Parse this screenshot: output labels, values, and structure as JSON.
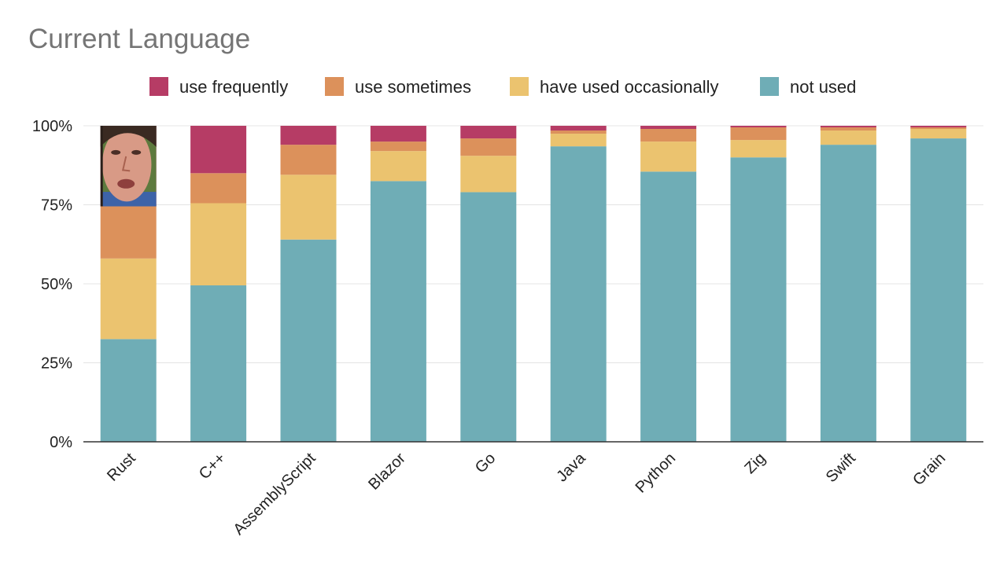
{
  "chart_data": {
    "type": "bar",
    "stacked": true,
    "percent_stacked": true,
    "title": "Current Language",
    "xlabel": "",
    "ylabel": "",
    "ylim": [
      0,
      100
    ],
    "yticks": [
      "0%",
      "25%",
      "50%",
      "75%",
      "100%"
    ],
    "grid": true,
    "legend_position": "top",
    "categories": [
      "Rust",
      "C++",
      "AssemblyScript",
      "Blazor",
      "Go",
      "Java",
      "Python",
      "Zig",
      "Swift",
      "Grain"
    ],
    "series": [
      {
        "name": "not used",
        "color": "#6fadb6",
        "values": [
          32.5,
          49.5,
          64,
          82.5,
          79,
          93.5,
          85.5,
          90,
          94,
          96
        ]
      },
      {
        "name": "have used occasionally",
        "color": "#ebc36f",
        "values": [
          25.5,
          26,
          20.5,
          9.5,
          11.5,
          4,
          9.5,
          5.5,
          4.5,
          3
        ]
      },
      {
        "name": "use sometimes",
        "color": "#dc915b",
        "values": [
          16.5,
          9.5,
          9.5,
          3,
          5.5,
          1,
          4,
          4,
          1,
          0.5
        ]
      },
      {
        "name": "use frequently",
        "color": "#b63c65",
        "values": [
          25.5,
          15,
          6,
          5,
          4,
          1.5,
          1,
          0.5,
          0.5,
          0.5
        ]
      }
    ],
    "legend_order": [
      "use frequently",
      "use sometimes",
      "have used occasionally",
      "not used"
    ],
    "overlay": {
      "category": "Rust",
      "description_icon": "face-photo-icon"
    }
  }
}
